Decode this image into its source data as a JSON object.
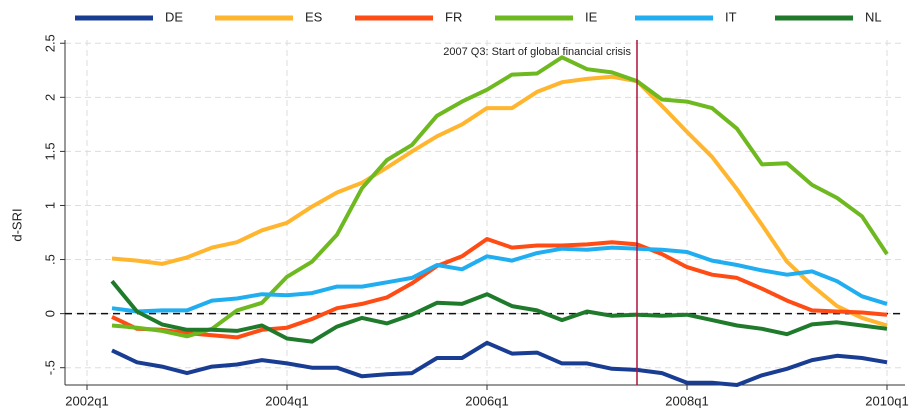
{
  "chart_data": {
    "type": "line",
    "ylabel": "d-SRI",
    "x": [
      2002.25,
      2002.5,
      2002.75,
      2003,
      2003.25,
      2003.5,
      2003.75,
      2004,
      2004.25,
      2004.5,
      2004.75,
      2005,
      2005.25,
      2005.5,
      2005.75,
      2006,
      2006.25,
      2006.5,
      2006.75,
      2007,
      2007.25,
      2007.5,
      2007.75,
      2008,
      2008.25,
      2008.5,
      2008.75,
      2009,
      2009.25,
      2009.5,
      2009.75,
      2010
    ],
    "series": [
      {
        "name": "DE",
        "color": "#1a3d94",
        "values": [
          -0.34,
          -0.45,
          -0.49,
          -0.55,
          -0.49,
          -0.47,
          -0.43,
          -0.46,
          -0.5,
          -0.5,
          -0.58,
          -0.56,
          -0.55,
          -0.41,
          -0.41,
          -0.27,
          -0.37,
          -0.36,
          -0.46,
          -0.46,
          -0.51,
          -0.52,
          -0.55,
          -0.64,
          -0.64,
          -0.66,
          -0.57,
          -0.51,
          -0.43,
          -0.39,
          -0.41,
          -0.45
        ]
      },
      {
        "name": "ES",
        "color": "#ffb52e",
        "values": [
          0.51,
          0.49,
          0.46,
          0.52,
          0.61,
          0.66,
          0.77,
          0.84,
          0.99,
          1.12,
          1.21,
          1.35,
          1.5,
          1.64,
          1.75,
          1.9,
          1.9,
          2.05,
          2.14,
          2.17,
          2.19,
          2.15,
          1.92,
          1.68,
          1.45,
          1.15,
          0.82,
          0.48,
          0.26,
          0.07,
          -0.04,
          -0.11
        ]
      },
      {
        "name": "FR",
        "color": "#ff4b14",
        "values": [
          -0.03,
          -0.14,
          -0.15,
          -0.18,
          -0.2,
          -0.22,
          -0.15,
          -0.13,
          -0.05,
          0.05,
          0.09,
          0.15,
          0.28,
          0.44,
          0.53,
          0.69,
          0.61,
          0.63,
          0.63,
          0.64,
          0.66,
          0.64,
          0.55,
          0.43,
          0.36,
          0.33,
          0.23,
          0.12,
          0.03,
          0.02,
          0.01,
          -0.01
        ]
      },
      {
        "name": "IE",
        "color": "#6db91f",
        "values": [
          -0.11,
          -0.13,
          -0.16,
          -0.21,
          -0.14,
          0.03,
          0.1,
          0.34,
          0.48,
          0.73,
          1.16,
          1.42,
          1.56,
          1.83,
          1.96,
          2.07,
          2.21,
          2.22,
          2.37,
          2.26,
          2.23,
          2.15,
          1.98,
          1.96,
          1.9,
          1.71,
          1.38,
          1.39,
          1.19,
          1.07,
          0.9,
          0.55
        ]
      },
      {
        "name": "IT",
        "color": "#21aef0",
        "values": [
          0.05,
          0.02,
          0.03,
          0.03,
          0.12,
          0.14,
          0.18,
          0.17,
          0.19,
          0.25,
          0.25,
          0.29,
          0.33,
          0.45,
          0.41,
          0.53,
          0.49,
          0.56,
          0.6,
          0.59,
          0.61,
          0.6,
          0.59,
          0.57,
          0.49,
          0.45,
          0.4,
          0.36,
          0.39,
          0.3,
          0.16,
          0.09
        ]
      },
      {
        "name": "NL",
        "color": "#1f7a2c",
        "values": [
          0.3,
          0.02,
          -0.1,
          -0.15,
          -0.15,
          -0.16,
          -0.11,
          -0.23,
          -0.26,
          -0.12,
          -0.04,
          -0.09,
          -0.01,
          0.1,
          0.09,
          0.18,
          0.07,
          0.03,
          -0.06,
          0.02,
          -0.02,
          -0.01,
          -0.02,
          -0.01,
          -0.06,
          -0.11,
          -0.14,
          -0.19,
          -0.1,
          -0.08,
          -0.11,
          -0.14
        ]
      }
    ],
    "xlim": [
      2001.78,
      2010.18
    ],
    "xticks": [
      {
        "value": 2002,
        "label": "2002q1"
      },
      {
        "value": 2004,
        "label": "2004q1"
      },
      {
        "value": 2006,
        "label": "2006q1"
      },
      {
        "value": 2008,
        "label": "2008q1"
      },
      {
        "value": 2010,
        "label": "2010q1"
      }
    ],
    "ylim": [
      -0.66,
      2.53
    ],
    "yticks": [
      {
        "value": -0.5,
        "label": "-.5"
      },
      0,
      {
        "value": 0.5,
        "label": ".5"
      },
      1,
      1.5,
      2,
      2.5
    ],
    "grid": true,
    "zero_line": true,
    "legend": "top",
    "annotation": {
      "x": 2007.5,
      "text": "2007 Q3: Start of global financial crisis",
      "color": "#b0123c"
    }
  }
}
